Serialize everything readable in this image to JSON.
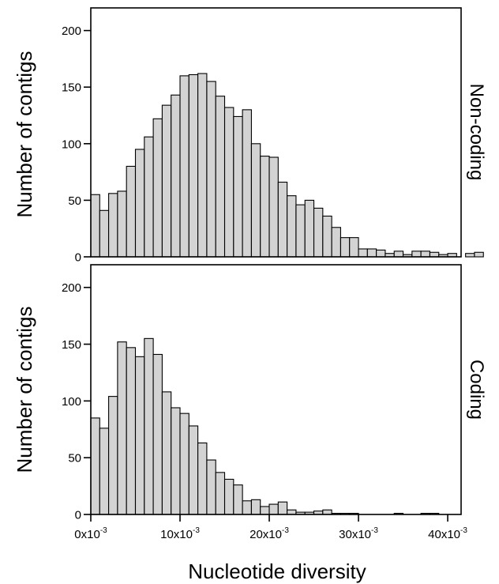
{
  "chart_data": [
    {
      "type": "bar",
      "panel_label": "Non-coding",
      "ylabel": "Number of contigs",
      "xlabel": "",
      "bar_color": "#d3d3d3",
      "ylim": [
        0,
        220
      ],
      "yticks": [
        0,
        50,
        100,
        150,
        200
      ],
      "xlim": [
        0,
        0.0415
      ],
      "bin_width": 0.001,
      "x_start": 0,
      "values": [
        55,
        41,
        56,
        58,
        80,
        95,
        106,
        122,
        134,
        143,
        160,
        161,
        162,
        155,
        142,
        132,
        124,
        130,
        100,
        89,
        88,
        66,
        54,
        46,
        50,
        43,
        36,
        26,
        17,
        17,
        7,
        7,
        6,
        3,
        5,
        2,
        5,
        5,
        4,
        2,
        3,
        0,
        3,
        4
      ]
    },
    {
      "type": "bar",
      "panel_label": "Coding",
      "ylabel": "Number of contigs",
      "xlabel": "Nucleotide diversity",
      "bar_color": "#d3d3d3",
      "ylim": [
        0,
        220
      ],
      "yticks": [
        0,
        50,
        100,
        150,
        200
      ],
      "xlim": [
        0,
        0.0415
      ],
      "bin_width": 0.001,
      "x_start": 0,
      "xticks": [
        "0x10-3",
        "10x10-3",
        "20x10-3",
        "30x10-3",
        "40x10-3"
      ],
      "values": [
        85,
        76,
        104,
        152,
        147,
        139,
        155,
        141,
        108,
        94,
        89,
        78,
        63,
        48,
        37,
        31,
        26,
        12,
        13,
        7,
        9,
        11,
        4,
        2,
        2,
        3,
        4,
        1,
        1,
        1,
        0,
        0,
        0,
        0,
        1,
        0,
        0,
        1,
        1
      ]
    }
  ]
}
